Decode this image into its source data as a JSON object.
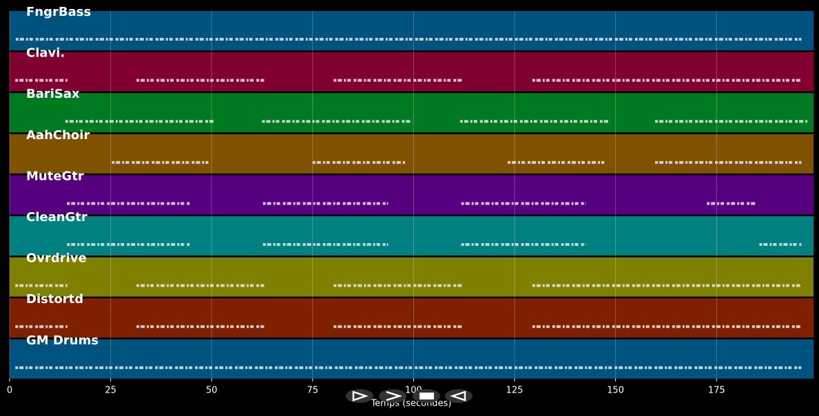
{
  "chart_data": {
    "type": "pianoroll",
    "xlabel": "Temps (secondes)",
    "xlim": [
      0,
      199
    ],
    "xticks": [
      0,
      25,
      50,
      75,
      100,
      125,
      150,
      175
    ],
    "grid": true,
    "tracks": [
      {
        "name": "FngrBass",
        "color": "#00527f",
        "segments": [
          [
            1.5,
            196
          ]
        ]
      },
      {
        "name": "Clavi.",
        "color": "#800030",
        "segments": [
          [
            1.4,
            14.3
          ],
          [
            31.4,
            63
          ],
          [
            80.2,
            112
          ],
          [
            129.4,
            196
          ]
        ]
      },
      {
        "name": "BariSax",
        "color": "#007a20",
        "segments": [
          [
            13.8,
            50.9
          ],
          [
            62.5,
            99.7
          ],
          [
            111.5,
            148.7
          ],
          [
            159.8,
            197.7
          ]
        ]
      },
      {
        "name": "AahChoir",
        "color": "#7f5200",
        "segments": [
          [
            25.3,
            49.2
          ],
          [
            75,
            98
          ],
          [
            123.3,
            147.2
          ],
          [
            159.8,
            196
          ]
        ]
      },
      {
        "name": "MuteGtr",
        "color": "#55007f",
        "segments": [
          [
            14.2,
            44.6
          ],
          [
            62.7,
            93.7
          ],
          [
            111.8,
            142.6
          ],
          [
            172.6,
            185
          ]
        ]
      },
      {
        "name": "CleanGtr",
        "color": "#008080",
        "segments": [
          [
            14.2,
            44.6
          ],
          [
            62.7,
            93.7
          ],
          [
            111.8,
            142.6
          ],
          [
            185.6,
            196
          ]
        ]
      },
      {
        "name": "Ovrdrive",
        "color": "#808000",
        "segments": [
          [
            1.4,
            14.3
          ],
          [
            31.4,
            63
          ],
          [
            80.2,
            112
          ],
          [
            129.4,
            196
          ]
        ]
      },
      {
        "name": "Distortd",
        "color": "#7f2000",
        "segments": [
          [
            1.4,
            14.3
          ],
          [
            31.4,
            63
          ],
          [
            80.2,
            112
          ],
          [
            129.4,
            196
          ]
        ]
      },
      {
        "name": "GM Drums",
        "color": "#00527f",
        "segments": [
          [
            1.4,
            196
          ]
        ]
      }
    ]
  }
}
